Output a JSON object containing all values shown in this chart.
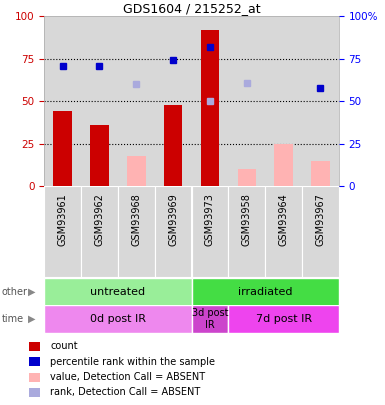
{
  "title": "GDS1604 / 215252_at",
  "samples": [
    "GSM93961",
    "GSM93962",
    "GSM93968",
    "GSM93969",
    "GSM93973",
    "GSM93958",
    "GSM93964",
    "GSM93967"
  ],
  "bar_values": [
    44,
    36,
    null,
    48,
    92,
    null,
    null,
    null
  ],
  "bar_values_absent": [
    null,
    null,
    18,
    null,
    null,
    10,
    25,
    15
  ],
  "rank_values": [
    71,
    71,
    null,
    74,
    82,
    null,
    null,
    58
  ],
  "rank_values_absent": [
    null,
    null,
    60,
    null,
    50,
    61,
    null,
    null
  ],
  "bar_color": "#cc0000",
  "bar_absent_color": "#ffb3b3",
  "rank_color": "#0000cc",
  "rank_absent_color": "#aaaadd",
  "bg_color": "#d8d8d8",
  "other_row": [
    {
      "label": "untreated",
      "start": 0,
      "end": 4,
      "color": "#99ee99"
    },
    {
      "label": "irradiated",
      "start": 4,
      "end": 8,
      "color": "#44dd44"
    }
  ],
  "time_row": [
    {
      "label": "0d post IR",
      "start": 0,
      "end": 4,
      "color": "#ee88ee"
    },
    {
      "label": "3d post\nIR",
      "start": 4,
      "end": 5,
      "color": "#cc44cc"
    },
    {
      "label": "7d post IR",
      "start": 5,
      "end": 8,
      "color": "#ee44ee"
    }
  ],
  "ylim": [
    0,
    100
  ],
  "yticks": [
    0,
    25,
    50,
    75,
    100
  ],
  "legend_items": [
    {
      "color": "#cc0000",
      "label": "count"
    },
    {
      "color": "#0000cc",
      "label": "percentile rank within the sample"
    },
    {
      "color": "#ffb3b3",
      "label": "value, Detection Call = ABSENT"
    },
    {
      "color": "#aaaadd",
      "label": "rank, Detection Call = ABSENT"
    }
  ]
}
